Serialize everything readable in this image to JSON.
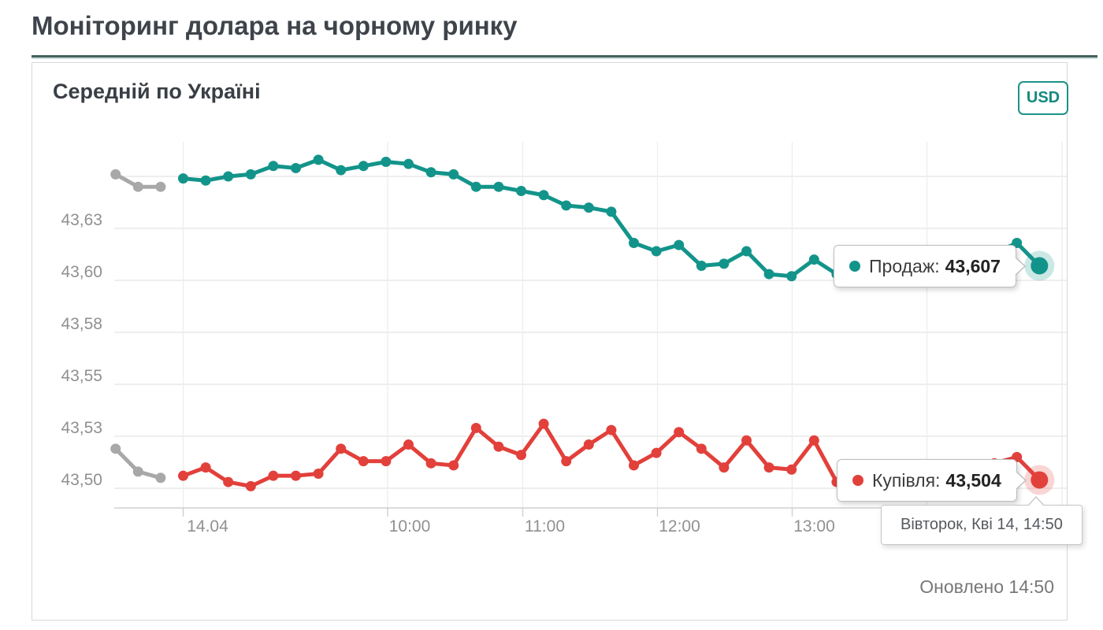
{
  "page": {
    "title": "Моніторинг долара на чорному ринку"
  },
  "card": {
    "subtitle": "Середній по Україні",
    "currency": "USD",
    "updated": "Оновлено 14:50"
  },
  "tooltips": {
    "sell": {
      "label": "Продаж:",
      "value": "43,607"
    },
    "buy": {
      "label": "Купівля:",
      "value": "43,504"
    },
    "date": "Вівторок, Кві 14, 14:50"
  },
  "chart_data": {
    "type": "line",
    "title": "Середній по Україні",
    "currency": "USD",
    "updated_time": "14:50",
    "x_axis": {
      "tick_labels": [
        "14.04",
        "10:00",
        "11:00",
        "12:00",
        "13:00"
      ],
      "point_interval_minutes": 10,
      "last_point_time": "14:50"
    },
    "y_axis": {
      "tick_labels": [
        "43,63",
        "43,60",
        "43,58",
        "43,55",
        "43,53",
        "43,50"
      ],
      "tick_values": [
        43.625,
        43.6,
        43.575,
        43.55,
        43.525,
        43.5
      ],
      "top_grid_value": 43.65,
      "range": [
        43.49,
        43.665
      ],
      "grid": true
    },
    "lead_in_color": "#a8a8a8",
    "grid_color": "#e9e9e9",
    "series": [
      {
        "name": "Продаж",
        "color": "#13948a",
        "final_value": 43.607,
        "lead_in": [
          43.651,
          43.645,
          43.645
        ],
        "values": [
          43.649,
          43.648,
          43.65,
          43.651,
          43.655,
          43.654,
          43.658,
          43.653,
          43.655,
          43.657,
          43.656,
          43.652,
          43.651,
          43.645,
          43.645,
          43.643,
          43.641,
          43.636,
          43.635,
          43.633,
          43.618,
          43.614,
          43.617,
          43.607,
          43.608,
          43.614,
          43.603,
          43.602,
          43.61,
          43.603,
          43.604,
          43.606,
          43.606,
          43.608,
          43.609,
          43.61,
          43.613,
          43.618,
          43.607
        ]
      },
      {
        "name": "Купівля",
        "color": "#e2403b",
        "final_value": 43.504,
        "lead_in": [
          43.519,
          43.508,
          43.505
        ],
        "values": [
          43.506,
          43.51,
          43.503,
          43.501,
          43.506,
          43.506,
          43.507,
          43.519,
          43.513,
          43.513,
          43.521,
          43.512,
          43.511,
          43.529,
          43.52,
          43.516,
          43.531,
          43.513,
          43.521,
          43.528,
          43.511,
          43.517,
          43.527,
          43.519,
          43.51,
          43.523,
          43.51,
          43.509,
          43.523,
          43.503,
          43.506,
          43.508,
          43.507,
          43.51,
          43.509,
          43.511,
          43.512,
          43.515,
          43.504
        ]
      }
    ]
  }
}
